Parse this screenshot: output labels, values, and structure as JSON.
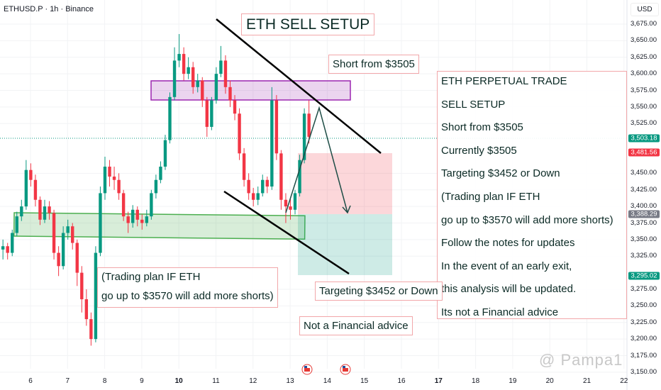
{
  "header": {
    "symbol_line": "ETHUSD.P · 1h · Binance",
    "currency": "USD"
  },
  "colors": {
    "up": "#089981",
    "down": "#f23645",
    "resistance_zone": "#9c27b0",
    "support_zone": "#4caf50",
    "note_border": "#f2a7aa"
  },
  "chart_data": {
    "type": "candlestick",
    "title": "ETHUSD.P · 1h · Binance",
    "candle_interval_hours": 3,
    "start_day": 5.2,
    "ohlc": [
      [
        3335,
        3350,
        3320,
        3340
      ],
      [
        3340,
        3345,
        3320,
        3330
      ],
      [
        3330,
        3365,
        3325,
        3360
      ],
      [
        3360,
        3392,
        3355,
        3385
      ],
      [
        3385,
        3410,
        3378,
        3400
      ],
      [
        3400,
        3470,
        3395,
        3455
      ],
      [
        3455,
        3465,
        3430,
        3440
      ],
      [
        3440,
        3448,
        3400,
        3410
      ],
      [
        3410,
        3415,
        3372,
        3380
      ],
      [
        3380,
        3410,
        3375,
        3400
      ],
      [
        3400,
        3408,
        3380,
        3390
      ],
      [
        3390,
        3395,
        3320,
        3330
      ],
      [
        3330,
        3340,
        3295,
        3310
      ],
      [
        3310,
        3370,
        3305,
        3360
      ],
      [
        3360,
        3380,
        3350,
        3370
      ],
      [
        3370,
        3375,
        3335,
        3345
      ],
      [
        3345,
        3350,
        3280,
        3300
      ],
      [
        3300,
        3310,
        3240,
        3260
      ],
      [
        3260,
        3275,
        3220,
        3230
      ],
      [
        3230,
        3240,
        3190,
        3200
      ],
      [
        3200,
        3340,
        3195,
        3330
      ],
      [
        3330,
        3430,
        3325,
        3420
      ],
      [
        3420,
        3475,
        3410,
        3460
      ],
      [
        3460,
        3470,
        3430,
        3445
      ],
      [
        3445,
        3460,
        3425,
        3440
      ],
      [
        3440,
        3450,
        3410,
        3420
      ],
      [
        3420,
        3425,
        3378,
        3385
      ],
      [
        3385,
        3392,
        3360,
        3375
      ],
      [
        3375,
        3402,
        3368,
        3395
      ],
      [
        3395,
        3400,
        3370,
        3380
      ],
      [
        3380,
        3388,
        3365,
        3375
      ],
      [
        3375,
        3395,
        3370,
        3385
      ],
      [
        3385,
        3425,
        3380,
        3420
      ],
      [
        3420,
        3448,
        3412,
        3440
      ],
      [
        3440,
        3468,
        3435,
        3460
      ],
      [
        3460,
        3508,
        3455,
        3500
      ],
      [
        3500,
        3572,
        3495,
        3565
      ],
      [
        3565,
        3640,
        3560,
        3620
      ],
      [
        3620,
        3660,
        3610,
        3630
      ],
      [
        3630,
        3640,
        3590,
        3600
      ],
      [
        3600,
        3625,
        3592,
        3610
      ],
      [
        3610,
        3618,
        3570,
        3580
      ],
      [
        3580,
        3600,
        3572,
        3590
      ],
      [
        3590,
        3595,
        3550,
        3560
      ],
      [
        3560,
        3565,
        3505,
        3520
      ],
      [
        3520,
        3565,
        3515,
        3560
      ],
      [
        3560,
        3610,
        3555,
        3600
      ],
      [
        3600,
        3642,
        3595,
        3620
      ],
      [
        3620,
        3628,
        3570,
        3580
      ],
      [
        3580,
        3590,
        3550,
        3560
      ],
      [
        3560,
        3568,
        3530,
        3540
      ],
      [
        3540,
        3548,
        3470,
        3480
      ],
      [
        3480,
        3488,
        3430,
        3440
      ],
      [
        3440,
        3450,
        3410,
        3420
      ],
      [
        3420,
        3428,
        3400,
        3410
      ],
      [
        3410,
        3430,
        3402,
        3420
      ],
      [
        3420,
        3448,
        3415,
        3440
      ],
      [
        3440,
        3445,
        3420,
        3430
      ],
      [
        3430,
        3580,
        3425,
        3560
      ],
      [
        3560,
        3568,
        3470,
        3480
      ],
      [
        3480,
        3485,
        3395,
        3410
      ],
      [
        3410,
        3420,
        3375,
        3400
      ],
      [
        3400,
        3412,
        3380,
        3395
      ],
      [
        3395,
        3425,
        3388,
        3420
      ],
      [
        3420,
        3478,
        3415,
        3470
      ],
      [
        3470,
        3548,
        3465,
        3540
      ],
      [
        3540,
        3560,
        3495,
        3505
      ]
    ],
    "y_ticks": [
      "3,675.00",
      "3,650.00",
      "3,625.00",
      "3,600.00",
      "3,575.00",
      "3,550.00",
      "3,525.00",
      "3,450.00",
      "3,425.00",
      "3,400.00",
      "3,375.00",
      "3,350.00",
      "3,325.00",
      "3,275.00",
      "3,250.00",
      "3,225.00",
      "3,200.00",
      "3,175.00",
      "3,150.00"
    ],
    "y_tick_values": [
      3675,
      3650,
      3625,
      3600,
      3575,
      3550,
      3525,
      3450,
      3425,
      3400,
      3375,
      3350,
      3325,
      3275,
      3250,
      3225,
      3200,
      3175,
      3150
    ],
    "x_ticks": [
      "6",
      "7",
      "8",
      "9",
      "10",
      "11",
      "12",
      "13",
      "14",
      "15",
      "16",
      "17",
      "18",
      "19",
      "20",
      "21",
      "22"
    ],
    "x_tick_days": [
      6,
      7,
      8,
      9,
      10,
      11,
      12,
      13,
      14,
      15,
      16,
      17,
      18,
      19,
      20,
      21,
      22
    ],
    "ylim": [
      3140,
      3690
    ],
    "price_labels": [
      {
        "text": "3,503.18",
        "value": 3503.18,
        "color": "#089981"
      },
      {
        "text": "3,481.56",
        "value": 3481.56,
        "color": "#f23645"
      },
      {
        "text": "3,388.29",
        "value": 3388.29,
        "color": "#787b86"
      },
      {
        "text": "3,295.02",
        "value": 3295.02,
        "color": "#089981"
      }
    ],
    "zones": {
      "resistance": [
        3562,
        3590
      ],
      "support": [
        3356,
        3390
      ],
      "short_stop": [
        3388.29,
        3481.56
      ],
      "short_target": [
        3295.02,
        3388.29
      ]
    }
  },
  "annotations": {
    "title": "ETH SELL SETUP",
    "short_from": "Short from $3505",
    "right_panel": [
      "ETH PERPETUAL TRADE",
      "SELL SETUP",
      "Short from $3505",
      "Currently $3505",
      "Targeting $3452 or Down",
      "(Trading plan IF ETH",
      "go up to $3570 will add more shorts)",
      "Follow the notes for updates",
      "In the event of an early exit,",
      "this analysis will be updated.",
      "Its not a Financial advice"
    ],
    "plan": [
      "(Trading plan IF ETH",
      "go up to $3570 will add more shorts)"
    ],
    "target": "Targeting $3452 or Down",
    "disclaimer": "Not a Financial advice"
  },
  "watermark": "@ Pampa1"
}
